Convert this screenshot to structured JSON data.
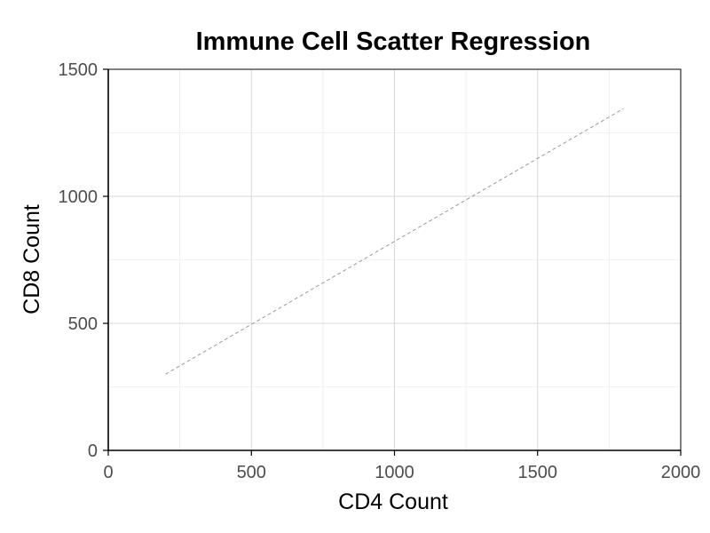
{
  "chart_data": {
    "type": "line",
    "title": "Immune Cell Scatter Regression",
    "xlabel": "CD4 Count",
    "ylabel": "CD8 Count",
    "xlim": [
      0,
      2000
    ],
    "ylim": [
      0,
      1500
    ],
    "x_ticks": [
      0,
      500,
      1000,
      1500,
      2000
    ],
    "y_ticks": [
      0,
      500,
      1000,
      1500
    ],
    "x_tick_labels": [
      "0",
      "500",
      "1000",
      "1500",
      "2000"
    ],
    "y_tick_labels": [
      "0",
      "500",
      "1000",
      "1500"
    ],
    "grid": true,
    "series": [
      {
        "style": "dashed",
        "color": "#999999",
        "x": [
          200,
          1800
        ],
        "y": [
          300,
          1345
        ]
      }
    ]
  },
  "colors": {
    "grid_major": "#d9d9d9",
    "grid_minor": "#ececec",
    "axis": "#000000",
    "regression_line": "#999999"
  }
}
